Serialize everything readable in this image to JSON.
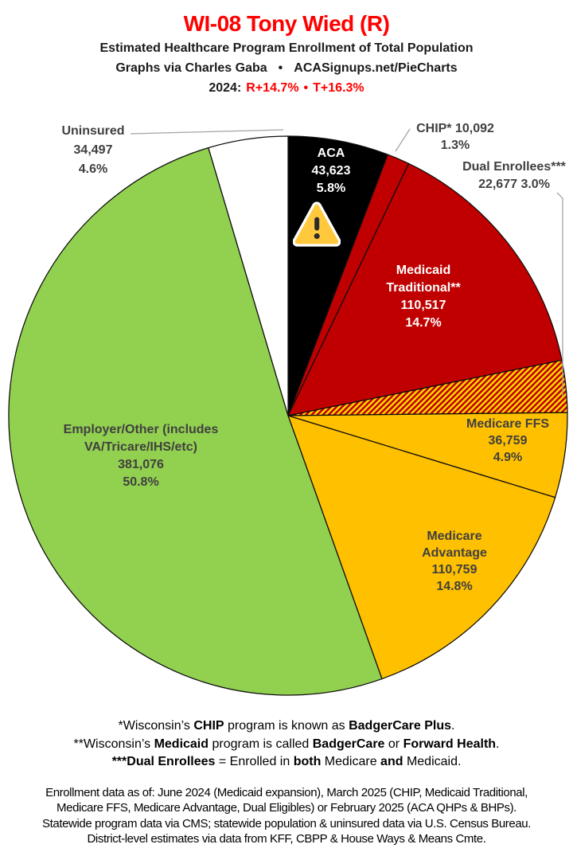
{
  "header": {
    "title": "WI-08 Tony Wied (R)",
    "subtitle": "Estimated Healthcare Program Enrollment of Total Population",
    "credit": {
      "left": "Graphs via Charles Gaba",
      "bullet": "•",
      "right": "ACASignups.net/PieCharts"
    },
    "partisan": {
      "prefix": "2024:",
      "r_lean": "R+14.7%",
      "bullet": "•",
      "t_lean": "T+16.3%"
    }
  },
  "chart_data": {
    "type": "pie",
    "title": "Estimated Healthcare Program Enrollment of Total Population",
    "district": "WI-08",
    "representative": "Tony Wied (R)",
    "start_angle": "12 o'clock",
    "direction": "clockwise",
    "outline_color": "#0d0d0d",
    "hatch": {
      "fg": "#C00000",
      "bg": "#FFDF00",
      "style": "diagonal-stripes"
    },
    "slices": [
      {
        "id": "aca",
        "name": "ACA",
        "enrollment": 43623,
        "value": "43,623",
        "pct": 5.8,
        "pct_label": "5.8%",
        "fill": "#000000",
        "label_color": "#FFFFFF"
      },
      {
        "id": "chip",
        "name": "CHIP*",
        "enrollment": 10092,
        "value": "10,092",
        "pct": 1.3,
        "pct_label": "1.3%",
        "fill": "#C00000",
        "label_color": "#404040"
      },
      {
        "id": "medicaid-traditional",
        "name": "Medicaid Traditional**",
        "enrollment": 110517,
        "value": "110,517",
        "pct": 14.7,
        "pct_label": "14.7%",
        "fill": "#C00000",
        "label_color": "#FFFFFF"
      },
      {
        "id": "dual-enrollees",
        "name": "Dual Enrollees***",
        "enrollment": 22677,
        "value": "22,677",
        "pct": 3.0,
        "pct_label": "3.0%",
        "fill": "hatch",
        "label_color": "#404040"
      },
      {
        "id": "medicare-ffs",
        "name": "Medicare FFS",
        "enrollment": 36759,
        "value": "36,759",
        "pct": 4.9,
        "pct_label": "4.9%",
        "fill": "#FFC000",
        "label_color": "#404040"
      },
      {
        "id": "medicare-advantage",
        "name": "Medicare Advantage",
        "enrollment": 110759,
        "value": "110,759",
        "pct": 14.8,
        "pct_label": "14.8%",
        "fill": "#FFC000",
        "label_color": "#404040"
      },
      {
        "id": "employer-other",
        "name": "Employer/Other (includes VA/Tricare/IHS/etc)",
        "enrollment": 381076,
        "value": "381,076",
        "pct": 50.8,
        "pct_label": "50.8%",
        "fill": "#92D050",
        "label_color": "#404040"
      },
      {
        "id": "uninsured",
        "name": "Uninsured",
        "enrollment": 34497,
        "value": "34,497",
        "pct": 4.6,
        "pct_label": "4.6%",
        "fill": "#FFFFFF",
        "label_color": "#404040"
      }
    ]
  },
  "icons": {
    "warning": "warning-triangle"
  },
  "footnotes": {
    "line1": {
      "pre": "*Wisconsin’s ",
      "b1": "CHIP",
      "mid1": " program is known as ",
      "b2": "BadgerCare Plus",
      "end": "."
    },
    "line2": {
      "pre": "**Wisconsin’s ",
      "b1": "Medicaid",
      "mid1": " program is called ",
      "b2": "BadgerCare",
      "mid2": " or ",
      "b3": "Forward Health",
      "end": "."
    },
    "line3": {
      "b1": "***Dual Enrollees",
      "mid1": " = Enrolled in ",
      "b2": "both",
      "mid2": " Medicare ",
      "b3": "and",
      "end": " Medicaid."
    }
  },
  "source_block": {
    "line1": "Enrollment data as of: June 2024 (Medicaid expansion), March 2025 (CHIP, Medicaid Traditional,",
    "line2": "Medicare FFS, Medicare Advantage, Dual Eligibles) or February 2025 (ACA QHPs & BHPs).",
    "line3": "Statewide program data via CMS; statewide population & uninsured data via U.S. Census Bureau.",
    "line4": "District-level estimates via data from KFF, CBPP & House Ways & Means Cmte."
  },
  "colors": {
    "title_red": "#FF0000",
    "slice_dark_red": "#C00000",
    "slice_gold": "#FFC000",
    "slice_green": "#92D050",
    "slice_black": "#000000",
    "label_gray": "#404040",
    "leader_line": "#a3a3a3"
  }
}
